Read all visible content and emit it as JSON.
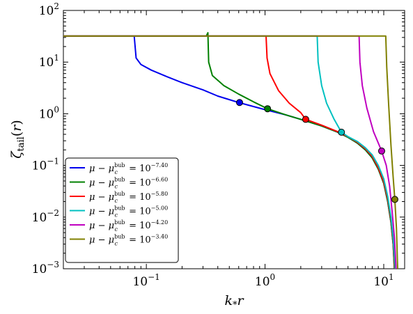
{
  "chart_data": {
    "type": "line",
    "x_scale": "log",
    "y_scale": "log",
    "xlim": [
      0.02,
      15
    ],
    "ylim": [
      0.001,
      100
    ],
    "xlabel": "k_* r",
    "ylabel": "ζ_tail(r)",
    "x_tick_labels": [
      {
        "value": 0.1,
        "base": "10",
        "exp": "−1"
      },
      {
        "value": 1,
        "base": "10",
        "exp": "0"
      },
      {
        "value": 10,
        "base": "10",
        "exp": "1"
      }
    ],
    "y_tick_labels": [
      {
        "value": 0.001,
        "base": "10",
        "exp": "−3"
      },
      {
        "value": 0.01,
        "base": "10",
        "exp": "−2"
      },
      {
        "value": 0.1,
        "base": "10",
        "exp": "−1"
      },
      {
        "value": 1,
        "base": "10",
        "exp": "0"
      },
      {
        "value": 10,
        "base": "10",
        "exp": "1"
      },
      {
        "value": 100,
        "base": "10",
        "exp": "2"
      }
    ],
    "legend_position": "lower-left",
    "series": [
      {
        "name": "μ − μ_c^bub = 10^−7.40",
        "exp": "−7.40",
        "color": "#0000ee",
        "points": [
          [
            0.02,
            32
          ],
          [
            0.079,
            32
          ],
          [
            0.082,
            12
          ],
          [
            0.09,
            9
          ],
          [
            0.11,
            7
          ],
          [
            0.15,
            5.2
          ],
          [
            0.2,
            4.0
          ],
          [
            0.3,
            2.9
          ],
          [
            0.4,
            2.2
          ],
          [
            0.6,
            1.65
          ],
          [
            1.0,
            1.2
          ],
          [
            1.5,
            0.95
          ],
          [
            2.0,
            0.78
          ],
          [
            3.0,
            0.58
          ],
          [
            4.0,
            0.45
          ],
          [
            5.0,
            0.35
          ],
          [
            6.0,
            0.27
          ],
          [
            7.0,
            0.2
          ],
          [
            8.0,
            0.14
          ],
          [
            9.0,
            0.085
          ],
          [
            10.0,
            0.045
          ],
          [
            10.8,
            0.02
          ],
          [
            11.5,
            0.008
          ],
          [
            12.0,
            0.003
          ],
          [
            12.3,
            0.001
          ]
        ],
        "marker": [
          0.61,
          1.65
        ]
      },
      {
        "name": "μ − μ_c^bub = 10^−6.60",
        "exp": "−6.60",
        "color": "#008000",
        "points": [
          [
            0.02,
            32
          ],
          [
            0.32,
            32
          ],
          [
            0.33,
            37
          ],
          [
            0.335,
            10
          ],
          [
            0.36,
            5.5
          ],
          [
            0.45,
            3.5
          ],
          [
            0.6,
            2.4
          ],
          [
            0.8,
            1.7
          ],
          [
            1.05,
            1.25
          ],
          [
            1.5,
            0.95
          ],
          [
            2.0,
            0.78
          ],
          [
            3.0,
            0.58
          ],
          [
            4.0,
            0.45
          ],
          [
            5.0,
            0.35
          ],
          [
            6.0,
            0.27
          ],
          [
            7.0,
            0.2
          ],
          [
            8.0,
            0.14
          ],
          [
            9.0,
            0.085
          ],
          [
            10.0,
            0.045
          ],
          [
            10.8,
            0.02
          ],
          [
            11.5,
            0.008
          ],
          [
            12.0,
            0.003
          ],
          [
            12.3,
            0.001
          ]
        ],
        "marker": [
          1.05,
          1.25
        ]
      },
      {
        "name": "μ − μ_c^bub = 10^−5.80",
        "exp": "−5.80",
        "color": "#ff0000",
        "points": [
          [
            0.02,
            32
          ],
          [
            1.02,
            32
          ],
          [
            1.04,
            12
          ],
          [
            1.1,
            6
          ],
          [
            1.3,
            2.8
          ],
          [
            1.6,
            1.6
          ],
          [
            2.0,
            1.05
          ],
          [
            2.2,
            0.78
          ],
          [
            3.0,
            0.6
          ],
          [
            4.0,
            0.46
          ],
          [
            5.0,
            0.36
          ],
          [
            6.0,
            0.28
          ],
          [
            7.0,
            0.21
          ],
          [
            8.0,
            0.15
          ],
          [
            9.0,
            0.09
          ],
          [
            10.0,
            0.048
          ],
          [
            10.8,
            0.022
          ],
          [
            11.5,
            0.009
          ],
          [
            12.0,
            0.0035
          ],
          [
            12.4,
            0.001
          ]
        ],
        "marker": [
          2.2,
          0.78
        ]
      },
      {
        "name": "μ − μ_c^bub = 10^−5.00",
        "exp": "−5.00",
        "color": "#00c0c0",
        "points": [
          [
            0.02,
            32
          ],
          [
            2.75,
            32
          ],
          [
            2.8,
            10
          ],
          [
            3.0,
            3.5
          ],
          [
            3.3,
            1.6
          ],
          [
            3.8,
            0.8
          ],
          [
            4.4,
            0.44
          ],
          [
            5.0,
            0.36
          ],
          [
            6.0,
            0.29
          ],
          [
            7.0,
            0.22
          ],
          [
            8.0,
            0.16
          ],
          [
            9.0,
            0.1
          ],
          [
            10.0,
            0.055
          ],
          [
            10.8,
            0.025
          ],
          [
            11.5,
            0.01
          ],
          [
            12.0,
            0.004
          ],
          [
            12.5,
            0.001
          ]
        ],
        "marker": [
          4.4,
          0.44
        ]
      },
      {
        "name": "μ − μ_c^bub = 10^−4.20",
        "exp": "−4.20",
        "color": "#c000c0",
        "points": [
          [
            0.02,
            32
          ],
          [
            6.2,
            32
          ],
          [
            6.3,
            10
          ],
          [
            6.6,
            3.5
          ],
          [
            7.2,
            1.3
          ],
          [
            8.2,
            0.45
          ],
          [
            9.6,
            0.19
          ],
          [
            10.5,
            0.1
          ],
          [
            11.2,
            0.04
          ],
          [
            11.8,
            0.012
          ],
          [
            12.3,
            0.004
          ],
          [
            12.7,
            0.001
          ]
        ],
        "marker": [
          9.6,
          0.19
        ]
      },
      {
        "name": "μ − μ_c^bub = 10^−3.40",
        "exp": "−3.40",
        "color": "#808000",
        "points": [
          [
            0.02,
            32
          ],
          [
            9.5,
            32
          ],
          [
            10.4,
            32
          ],
          [
            10.6,
            8
          ],
          [
            11.0,
            1.5
          ],
          [
            11.5,
            0.25
          ],
          [
            12.0,
            0.06
          ],
          [
            12.4,
            0.022
          ],
          [
            12.8,
            0.006
          ],
          [
            13.1,
            0.001
          ]
        ],
        "marker": [
          12.4,
          0.022
        ]
      }
    ]
  }
}
